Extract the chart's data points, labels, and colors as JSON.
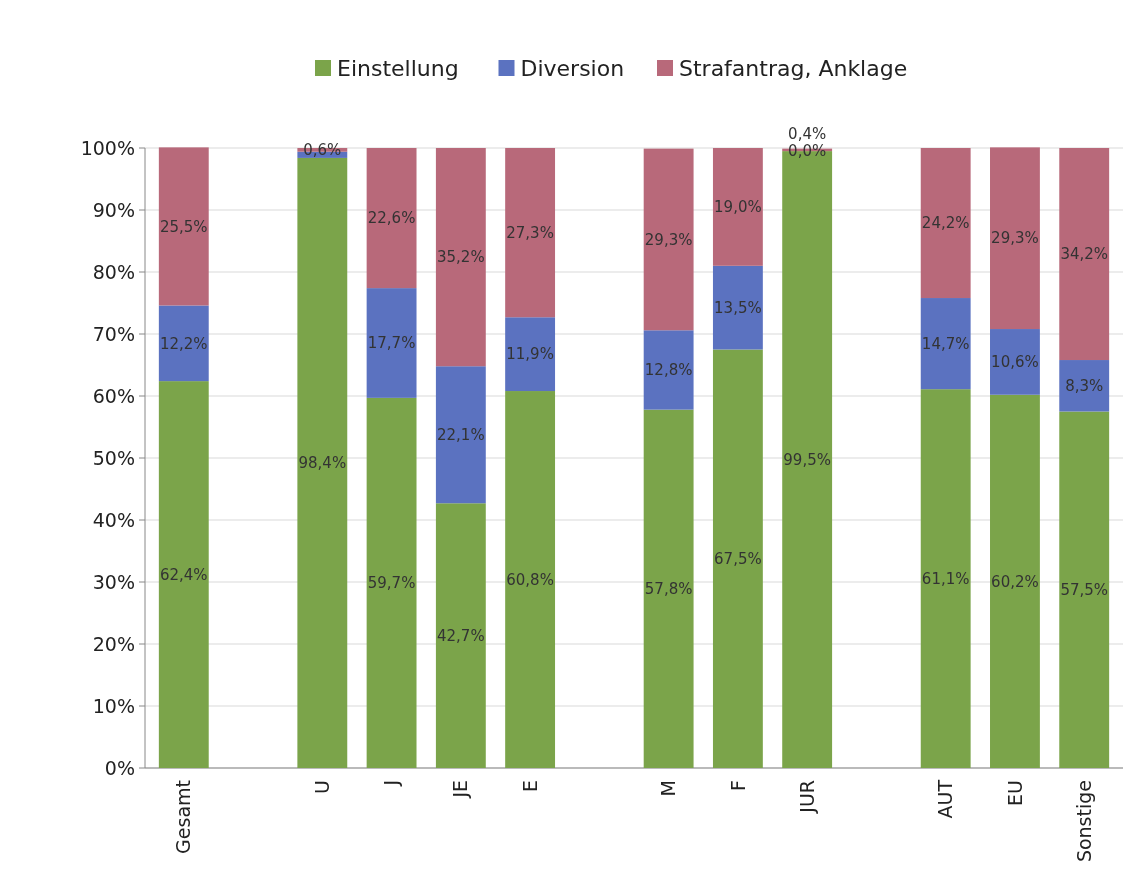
{
  "chart_data": {
    "type": "bar",
    "stacked": true,
    "categories": [
      "Gesamt",
      null,
      "U",
      "J",
      "JE",
      "E",
      null,
      "M",
      "F",
      "JUR",
      null,
      "AUT",
      "EU",
      "Sonstige"
    ],
    "series": [
      {
        "name": "Einstellung",
        "color": "#7ba44a",
        "values": [
          62.4,
          null,
          98.4,
          59.7,
          42.7,
          60.8,
          null,
          57.8,
          67.5,
          99.5,
          null,
          61.1,
          60.2,
          57.5
        ],
        "value_labels": [
          "62,4%",
          null,
          "98,4%",
          "59,7%",
          "42,7%",
          "60,8%",
          null,
          "57,8%",
          "67,5%",
          "99,5%",
          null,
          "61,1%",
          "60,2%",
          "57,5%"
        ]
      },
      {
        "name": "Diversion",
        "color": "#5b72c0",
        "values": [
          12.2,
          null,
          1.0,
          17.7,
          22.1,
          11.9,
          null,
          12.8,
          13.5,
          0.0,
          null,
          14.7,
          10.6,
          8.3
        ],
        "value_labels": [
          "12,2%",
          null,
          null,
          "17,7%",
          "22,1%",
          "11,9%",
          null,
          "12,8%",
          "13,5%",
          "0,0%",
          null,
          "14,7%",
          "10,6%",
          "8,3%"
        ]
      },
      {
        "name": "Strafantrag, Anklage",
        "color": "#b8697a",
        "values": [
          25.5,
          null,
          0.6,
          22.6,
          35.2,
          27.3,
          null,
          29.3,
          19.0,
          0.4,
          null,
          24.2,
          29.3,
          34.2
        ],
        "value_labels": [
          "25,5%",
          null,
          "0,6%",
          "22,6%",
          "35,2%",
          "27,3%",
          null,
          "29,3%",
          "19,0%",
          "0,4%",
          null,
          "24,2%",
          "29,3%",
          "34,2%"
        ]
      }
    ],
    "ylim": [
      0,
      100
    ],
    "yticks": [
      {
        "value": 0,
        "label": "0%"
      },
      {
        "value": 10,
        "label": "10%"
      },
      {
        "value": 20,
        "label": "20%"
      },
      {
        "value": 30,
        "label": "30%"
      },
      {
        "value": 40,
        "label": "40%"
      },
      {
        "value": 50,
        "label": "50%"
      },
      {
        "value": 60,
        "label": "60%"
      },
      {
        "value": 70,
        "label": "70%"
      },
      {
        "value": 80,
        "label": "80%"
      },
      {
        "value": 90,
        "label": "90%"
      },
      {
        "value": 100,
        "label": "100%"
      }
    ],
    "grid": "y",
    "legend": "top"
  }
}
